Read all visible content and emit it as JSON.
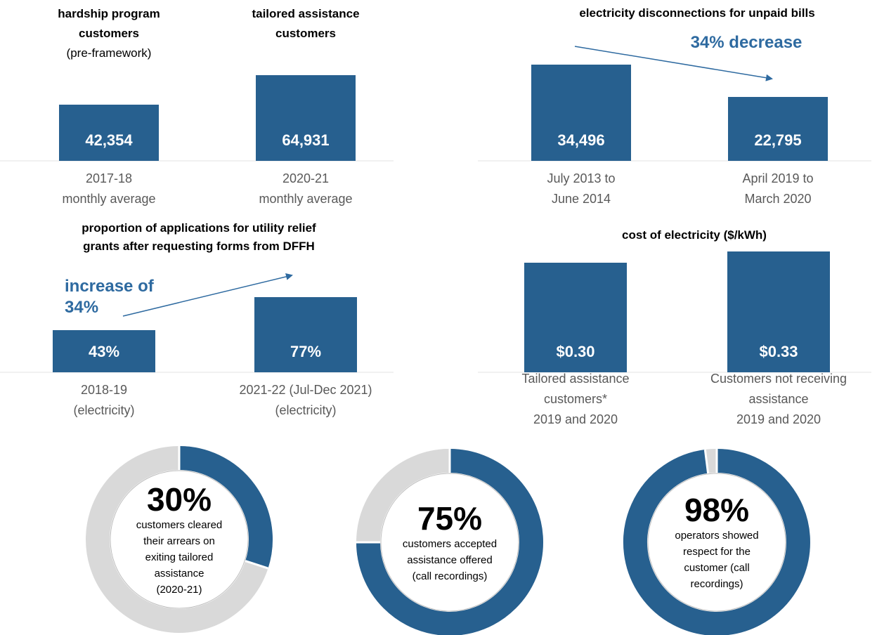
{
  "chart_data": [
    {
      "type": "bar",
      "bar_titles": [
        "hardship program\ncustomers",
        "tailored assistance\ncustomers"
      ],
      "subtitle": "(pre-framework)",
      "categories": [
        "2017-18\nmonthly average",
        "2020-21\nmonthly average"
      ],
      "values": [
        42354,
        64931
      ],
      "value_labels": [
        "42,354",
        "64,931"
      ],
      "color": "#27608f"
    },
    {
      "type": "bar",
      "title": "electricity disconnections for unpaid bills",
      "annotation": "34% decrease",
      "categories": [
        "July 2013 to\nJune 2014",
        "April 2019 to\nMarch 2020"
      ],
      "values": [
        34496,
        22795
      ],
      "value_labels": [
        "34,496",
        "22,795"
      ],
      "color": "#27608f"
    },
    {
      "type": "bar",
      "title": "proportion of applications for utility relief\ngrants after requesting forms from DFFH",
      "annotation": "increase of\n34%",
      "categories": [
        "2018-19\n(electricity)",
        "2021-22 (Jul-Dec 2021)\n(electricity)"
      ],
      "values": [
        43,
        77
      ],
      "value_labels": [
        "43%",
        "77%"
      ],
      "color": "#27608f"
    },
    {
      "type": "bar",
      "title": "cost of electricity ($/kWh)",
      "categories": [
        "Tailored assistance\ncustomers*\n2019 and 2020",
        "Customers not receiving\nassistance\n2019 and 2020"
      ],
      "values": [
        0.3,
        0.33
      ],
      "value_labels": [
        "$0.30",
        "$0.33"
      ],
      "color": "#27608f"
    },
    {
      "type": "donut",
      "value": 30,
      "value_label": "30%",
      "description": "customers cleared\ntheir arrears on\nexiting tailored\nassistance\n(2020-21)",
      "color": "#27608f",
      "rest_color": "#d9d9d9"
    },
    {
      "type": "donut",
      "value": 75,
      "value_label": "75%",
      "description": "customers accepted\nassistance offered\n(call recordings)",
      "color": "#27608f",
      "rest_color": "#d9d9d9"
    },
    {
      "type": "donut",
      "value": 98,
      "value_label": "98%",
      "description": "operators showed\nrespect for the\ncustomer (call\nrecordings)",
      "color": "#27608f",
      "rest_color": "#d9d9d9"
    }
  ]
}
